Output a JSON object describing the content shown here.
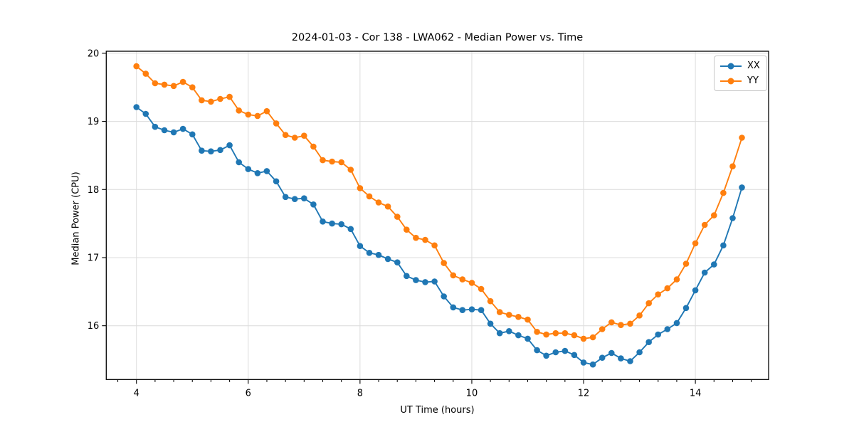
{
  "chart_data": {
    "type": "line",
    "title": "2024-01-03 - Cor 138 - LWA062 - Median Power vs. Time",
    "xlabel": "UT Time (hours)",
    "ylabel": "Median Power (CPU)",
    "xlim": [
      3.46,
      15.31
    ],
    "ylim": [
      15.21,
      20.03
    ],
    "x_major_ticks": [
      4,
      6,
      8,
      10,
      12,
      14
    ],
    "x_minor_tick_interval": 0.3333,
    "y_major_ticks": [
      16,
      17,
      18,
      19,
      20
    ],
    "grid": true,
    "legend_position": "upper right",
    "x": [
      4.0,
      4.167,
      4.333,
      4.5,
      4.667,
      4.833,
      5.0,
      5.167,
      5.333,
      5.5,
      5.667,
      5.833,
      6.0,
      6.167,
      6.333,
      6.5,
      6.667,
      6.833,
      7.0,
      7.167,
      7.333,
      7.5,
      7.667,
      7.833,
      8.0,
      8.167,
      8.333,
      8.5,
      8.667,
      8.833,
      9.0,
      9.167,
      9.333,
      9.5,
      9.667,
      9.833,
      10.0,
      10.167,
      10.333,
      10.5,
      10.667,
      10.833,
      11.0,
      11.167,
      11.333,
      11.5,
      11.667,
      11.833,
      12.0,
      12.167,
      12.333,
      12.5,
      12.667,
      12.833,
      13.0,
      13.167,
      13.333,
      13.5,
      13.667,
      13.833,
      14.0,
      14.167,
      14.333,
      14.5,
      14.667,
      14.833
    ],
    "series": [
      {
        "name": "XX",
        "color": "#1f77b4",
        "marker": "circle",
        "values": [
          19.21,
          19.11,
          18.92,
          18.87,
          18.84,
          18.89,
          18.81,
          18.57,
          18.56,
          18.58,
          18.65,
          18.4,
          18.3,
          18.24,
          18.27,
          18.12,
          17.89,
          17.86,
          17.87,
          17.78,
          17.53,
          17.5,
          17.49,
          17.42,
          17.17,
          17.07,
          17.04,
          16.98,
          16.93,
          16.73,
          16.67,
          16.64,
          16.65,
          16.43,
          16.27,
          16.23,
          16.24,
          16.23,
          16.03,
          15.89,
          15.92,
          15.86,
          15.81,
          15.64,
          15.56,
          15.61,
          15.63,
          15.57,
          15.46,
          15.43,
          15.53,
          15.6,
          15.52,
          15.48,
          15.61,
          15.76,
          15.87,
          15.95,
          16.04,
          16.26,
          16.52,
          16.78,
          16.9,
          17.18,
          17.58,
          18.03
        ]
      },
      {
        "name": "YY",
        "color": "#ff7f0e",
        "marker": "circle",
        "values": [
          19.81,
          19.7,
          19.56,
          19.54,
          19.52,
          19.58,
          19.5,
          19.31,
          19.29,
          19.33,
          19.36,
          19.16,
          19.1,
          19.08,
          19.15,
          18.97,
          18.8,
          18.76,
          18.79,
          18.63,
          18.43,
          18.41,
          18.4,
          18.29,
          18.02,
          17.9,
          17.81,
          17.75,
          17.6,
          17.41,
          17.29,
          17.26,
          17.18,
          16.92,
          16.74,
          16.68,
          16.63,
          16.54,
          16.36,
          16.2,
          16.16,
          16.13,
          16.09,
          15.91,
          15.87,
          15.89,
          15.89,
          15.86,
          15.81,
          15.83,
          15.95,
          16.05,
          16.01,
          16.03,
          16.15,
          16.33,
          16.46,
          16.55,
          16.68,
          16.91,
          17.21,
          17.48,
          17.62,
          17.95,
          18.34,
          18.76
        ]
      }
    ]
  },
  "legend": {
    "items": [
      {
        "label": "XX",
        "color": "#1f77b4"
      },
      {
        "label": "YY",
        "color": "#ff7f0e"
      }
    ]
  },
  "style": {
    "grid_color": "#dcdcdc",
    "spine_color": "#000000",
    "tick_color": "#000000",
    "text_color": "#000000"
  }
}
